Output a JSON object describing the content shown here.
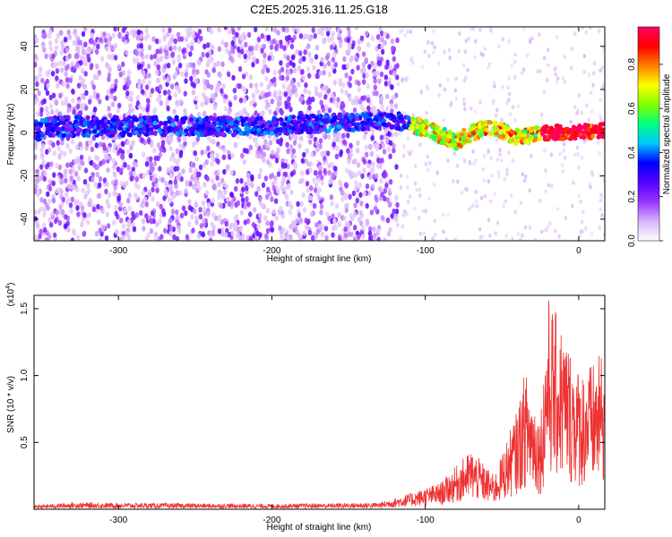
{
  "title": "C2E5.2025.316.11.25.G18",
  "chart_data": [
    {
      "type": "heatmap",
      "title": "C2E5.2025.316.11.25.G18",
      "xlabel": "Height of straight line (km)",
      "ylabel": "Frequency (Hz)",
      "xlim": [
        -355,
        17
      ],
      "ylim": [
        -50,
        49
      ],
      "xticks": [
        -300,
        -200,
        -100,
        0
      ],
      "xtick_labels": [
        "-300",
        "-200",
        "-100",
        "0"
      ],
      "yticks": [
        -40,
        -20,
        0,
        20,
        40
      ],
      "ytick_labels": [
        "-40",
        "-20",
        "0",
        "20",
        "40"
      ],
      "colorbar": {
        "label": "Normalized spectral amplitude",
        "range": [
          0,
          0.97
        ],
        "ticks": [
          0.0,
          0.2,
          0.4,
          0.6,
          0.8
        ],
        "tick_labels": [
          "0.0",
          "0.2",
          "0.4",
          "0.6",
          "0.8"
        ],
        "colormap": [
          "#ffffff",
          "#d8b4f8",
          "#9933ff",
          "#5500ff",
          "#0000ff",
          "#00c8ff",
          "#00ff80",
          "#80ff00",
          "#ffff00",
          "#ff8000",
          "#ff0000",
          "#ff0060"
        ]
      },
      "signal_band": {
        "description": "band near 0 Hz",
        "center_track": [
          {
            "x": -350,
            "y": 3
          },
          {
            "x": -200,
            "y": 3
          },
          {
            "x": -120,
            "y": 6
          },
          {
            "x": -100,
            "y": 2
          },
          {
            "x": -80,
            "y": -4
          },
          {
            "x": -60,
            "y": 3
          },
          {
            "x": -40,
            "y": -2
          },
          {
            "x": -20,
            "y": 0
          },
          {
            "x": 15,
            "y": 1
          }
        ],
        "noise_floor_end_x": -118
      }
    },
    {
      "type": "line",
      "xlabel": "Height of straight line (km)",
      "ylabel": "SNR (10 * v/v)",
      "scale_label": "(x10",
      "scale_exp": "4",
      "scale_close": ")",
      "xlim": [
        -355,
        17
      ],
      "ylim": [
        0,
        1.6
      ],
      "xticks": [
        -300,
        -200,
        -100,
        0
      ],
      "xtick_labels": [
        "-300",
        "-200",
        "-100",
        "0"
      ],
      "yticks": [
        0.5,
        1.0,
        1.5
      ],
      "ytick_labels": [
        "0.5",
        "1.0",
        "1.5"
      ],
      "color": "#ee3333",
      "envelope": [
        {
          "x": -355,
          "y": 0.03
        },
        {
          "x": -330,
          "y": 0.05
        },
        {
          "x": -200,
          "y": 0.04
        },
        {
          "x": -130,
          "y": 0.05
        },
        {
          "x": -110,
          "y": 0.12
        },
        {
          "x": -90,
          "y": 0.2
        },
        {
          "x": -70,
          "y": 0.45
        },
        {
          "x": -55,
          "y": 0.25
        },
        {
          "x": -40,
          "y": 0.75
        },
        {
          "x": -35,
          "y": 1.05
        },
        {
          "x": -25,
          "y": 0.7
        },
        {
          "x": -20,
          "y": 1.6
        },
        {
          "x": -10,
          "y": 1.35
        },
        {
          "x": 0,
          "y": 1.05
        },
        {
          "x": 10,
          "y": 1.1
        },
        {
          "x": 17,
          "y": 1.2
        }
      ]
    }
  ]
}
